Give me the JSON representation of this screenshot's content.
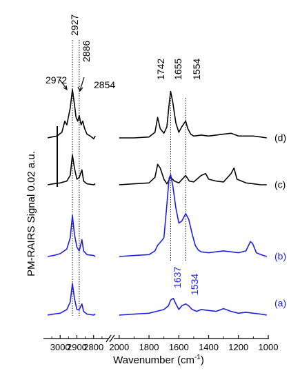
{
  "chart_data": {
    "type": "line",
    "xlabel_main": "Wavenumber (cm",
    "xlabel_sup": "-1",
    "xlabel_close": ")",
    "ylabel": "PM-RAIRS Signal 0.02 a.u.",
    "x_reversed": true,
    "x_axis_break": {
      "left_range": [
        3100,
        2700
      ],
      "right_range": [
        2050,
        1000
      ]
    },
    "x_ticks_left": [
      "3000",
      "2900",
      "2800"
    ],
    "x_ticks_right": [
      "2000",
      "1800",
      "1600",
      "1400",
      "1200",
      "1000"
    ],
    "dotted_lines": [
      2927,
      2886,
      1655,
      1554
    ],
    "peak_labels_black": [
      "2972",
      "2927",
      "2886",
      "2854",
      "1742",
      "1655",
      "1554"
    ],
    "peak_labels_blue": [
      "1637",
      "1534"
    ],
    "colors": {
      "black": "#000000",
      "blue": "#1e1ee0"
    },
    "series": [
      {
        "name": "(d)",
        "color": "#000000",
        "points": [
          [
            3075,
            0
          ],
          [
            3050,
            0.05
          ],
          [
            3020,
            0.1
          ],
          [
            2990,
            0.3
          ],
          [
            2972,
            0.9
          ],
          [
            2960,
            0.7
          ],
          [
            2940,
            1.6
          ],
          [
            2927,
            2.6
          ],
          [
            2915,
            1.8
          ],
          [
            2905,
            1.1
          ],
          [
            2895,
            0.9
          ],
          [
            2886,
            1.2
          ],
          [
            2875,
            0.7
          ],
          [
            2865,
            0.9
          ],
          [
            2854,
            0.5
          ],
          [
            2840,
            0.2
          ],
          [
            2820,
            0.1
          ],
          [
            2800,
            -0.05
          ],
          [
            2790,
            0.1
          ],
          [
            2000,
            0
          ],
          [
            1900,
            0
          ],
          [
            1800,
            0.05
          ],
          [
            1760,
            0.3
          ],
          [
            1742,
            1.1
          ],
          [
            1725,
            0.5
          ],
          [
            1700,
            0.25
          ],
          [
            1680,
            0.6
          ],
          [
            1665,
            1.8
          ],
          [
            1655,
            2.5
          ],
          [
            1640,
            1.9
          ],
          [
            1620,
            0.8
          ],
          [
            1600,
            0.3
          ],
          [
            1580,
            0.6
          ],
          [
            1554,
            0.9
          ],
          [
            1540,
            0.5
          ],
          [
            1520,
            0.2
          ],
          [
            1500,
            0.1
          ],
          [
            1450,
            0.15
          ],
          [
            1400,
            0.1
          ],
          [
            1300,
            0.2
          ],
          [
            1250,
            0.25
          ],
          [
            1200,
            0.1
          ],
          [
            1100,
            0.1
          ],
          [
            1050,
            0.05
          ],
          [
            1010,
            0
          ]
        ]
      },
      {
        "name": "(c)",
        "color": "#000000",
        "points": [
          [
            3075,
            0
          ],
          [
            3040,
            0.05
          ],
          [
            3000,
            0.1
          ],
          [
            2960,
            0.2
          ],
          [
            2940,
            0.5
          ],
          [
            2927,
            1.6
          ],
          [
            2915,
            0.9
          ],
          [
            2900,
            0.3
          ],
          [
            2886,
            0.4
          ],
          [
            2870,
            0.8
          ],
          [
            2860,
            0.2
          ],
          [
            2840,
            0.05
          ],
          [
            2800,
            0
          ],
          [
            2790,
            0.05
          ],
          [
            2000,
            0
          ],
          [
            1900,
            0.05
          ],
          [
            1800,
            0.1
          ],
          [
            1760,
            0.4
          ],
          [
            1742,
            1.1
          ],
          [
            1725,
            0.9
          ],
          [
            1700,
            0.3
          ],
          [
            1680,
            0.05
          ],
          [
            1655,
            0.4
          ],
          [
            1630,
            0.2
          ],
          [
            1600,
            0.1
          ],
          [
            1554,
            0.5
          ],
          [
            1530,
            0.2
          ],
          [
            1500,
            0.15
          ],
          [
            1450,
            0.5
          ],
          [
            1420,
            0.6
          ],
          [
            1400,
            0.3
          ],
          [
            1350,
            0.2
          ],
          [
            1300,
            0.15
          ],
          [
            1250,
            0.6
          ],
          [
            1230,
            0.9
          ],
          [
            1210,
            0.3
          ],
          [
            1150,
            0.1
          ],
          [
            1100,
            0.05
          ],
          [
            1050,
            0
          ],
          [
            1010,
            0
          ]
        ]
      },
      {
        "name": "(b)",
        "color": "#1e1ee0",
        "points": [
          [
            3075,
            0
          ],
          [
            3040,
            0.05
          ],
          [
            3000,
            0.15
          ],
          [
            2960,
            0.4
          ],
          [
            2940,
            1.0
          ],
          [
            2927,
            2.2
          ],
          [
            2915,
            1.2
          ],
          [
            2900,
            0.5
          ],
          [
            2886,
            0.3
          ],
          [
            2870,
            0.9
          ],
          [
            2860,
            0.3
          ],
          [
            2840,
            0.1
          ],
          [
            2800,
            0.05
          ],
          [
            2790,
            0
          ],
          [
            2000,
            0
          ],
          [
            1900,
            0.05
          ],
          [
            1800,
            0.1
          ],
          [
            1760,
            0.3
          ],
          [
            1742,
            0.6
          ],
          [
            1720,
            0.8
          ],
          [
            1700,
            1.0
          ],
          [
            1680,
            2.8
          ],
          [
            1665,
            4.2
          ],
          [
            1655,
            4.4
          ],
          [
            1640,
            3.8
          ],
          [
            1620,
            2.6
          ],
          [
            1600,
            1.8
          ],
          [
            1580,
            1.9
          ],
          [
            1554,
            2.3
          ],
          [
            1534,
            2.0
          ],
          [
            1510,
            1.2
          ],
          [
            1490,
            0.6
          ],
          [
            1470,
            0.35
          ],
          [
            1450,
            0.25
          ],
          [
            1400,
            0.2
          ],
          [
            1300,
            0.3
          ],
          [
            1200,
            0.2
          ],
          [
            1150,
            0.3
          ],
          [
            1120,
            0.8
          ],
          [
            1105,
            0.7
          ],
          [
            1080,
            0.2
          ],
          [
            1050,
            0.1
          ],
          [
            1010,
            0
          ]
        ]
      },
      {
        "name": "(a)",
        "color": "#1e1ee0",
        "points": [
          [
            3075,
            0
          ],
          [
            3040,
            0.05
          ],
          [
            3000,
            0.1
          ],
          [
            2960,
            0.3
          ],
          [
            2940,
            0.7
          ],
          [
            2927,
            1.7
          ],
          [
            2915,
            0.9
          ],
          [
            2900,
            0.3
          ],
          [
            2886,
            0.3
          ],
          [
            2870,
            0.6
          ],
          [
            2860,
            0.2
          ],
          [
            2840,
            0.05
          ],
          [
            2800,
            0
          ],
          [
            2790,
            0.05
          ],
          [
            2000,
            0
          ],
          [
            1900,
            0.05
          ],
          [
            1800,
            0.1
          ],
          [
            1750,
            0.2
          ],
          [
            1700,
            0.3
          ],
          [
            1670,
            0.5
          ],
          [
            1655,
            0.8
          ],
          [
            1637,
            0.9
          ],
          [
            1620,
            0.6
          ],
          [
            1600,
            0.3
          ],
          [
            1580,
            0.5
          ],
          [
            1554,
            0.6
          ],
          [
            1534,
            0.5
          ],
          [
            1510,
            0.3
          ],
          [
            1480,
            0.2
          ],
          [
            1450,
            0.3
          ],
          [
            1400,
            0.25
          ],
          [
            1350,
            0.2
          ],
          [
            1300,
            0.35
          ],
          [
            1250,
            0.2
          ],
          [
            1200,
            0.1
          ],
          [
            1150,
            0.15
          ],
          [
            1100,
            0.1
          ],
          [
            1050,
            0.05
          ],
          [
            1010,
            0
          ]
        ]
      }
    ]
  }
}
